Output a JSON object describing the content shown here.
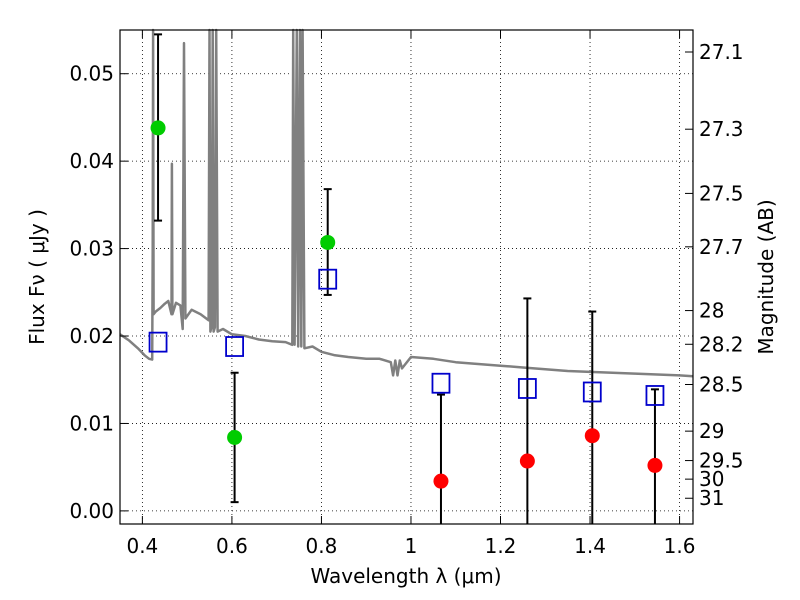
{
  "chart_data": {
    "type": "scatter",
    "x_axis": {
      "label": "Wavelength  λ (μm)",
      "range": [
        0.35,
        1.63
      ],
      "ticks": [
        0.4,
        0.6,
        0.8,
        1.0,
        1.2,
        1.4,
        1.6
      ],
      "tick_labels": [
        "0.4",
        "0.6",
        "0.8",
        "1",
        "1.2",
        "1.4",
        "1.6"
      ]
    },
    "y_axis": {
      "label": "Flux  Fν  ( μJy )",
      "range": [
        -0.0015,
        0.055
      ],
      "ticks": [
        0.0,
        0.01,
        0.02,
        0.03,
        0.04,
        0.05
      ],
      "tick_labels": [
        "0.00",
        "0.01",
        "0.02",
        "0.03",
        "0.04",
        "0.05"
      ]
    },
    "y2_axis": {
      "label": "Magnitude (AB)",
      "ticks": [
        27.1,
        27.3,
        27.5,
        27.7,
        28,
        28.2,
        28.5,
        29,
        29.5,
        30,
        31
      ],
      "tick_labels": [
        "27.1",
        "27.3",
        "27.5",
        "27.7",
        "28",
        "28.2",
        "28.5",
        "29",
        "29.5",
        "30",
        "31"
      ]
    },
    "grid": true,
    "colors": {
      "model": "#808080",
      "detection": "#00cc00",
      "upper_limit": "#ff0000",
      "model_photometry": "#0000cc",
      "error_bar": "#000000"
    },
    "green_points": [
      {
        "x": 0.435,
        "y": 0.0438,
        "err_low": 0.0332,
        "err_high": 0.0545
      },
      {
        "x": 0.606,
        "y": 0.0084,
        "err_low": 0.001,
        "err_high": 0.0158
      },
      {
        "x": 0.814,
        "y": 0.0307,
        "err_low": 0.0247,
        "err_high": 0.0368
      }
    ],
    "red_points": [
      {
        "x": 1.067,
        "y": 0.0034,
        "err_low": -0.0015,
        "err_high": 0.0133
      },
      {
        "x": 1.26,
        "y": 0.0057,
        "err_low": -0.0015,
        "err_high": 0.0243
      },
      {
        "x": 1.405,
        "y": 0.0086,
        "err_low": -0.0015,
        "err_high": 0.0228
      },
      {
        "x": 1.545,
        "y": 0.0052,
        "err_low": -0.0015,
        "err_high": 0.0139
      }
    ],
    "blue_squares": [
      {
        "x": 0.435,
        "y": 0.0193
      },
      {
        "x": 0.606,
        "y": 0.0188
      },
      {
        "x": 0.814,
        "y": 0.0265
      },
      {
        "x": 1.067,
        "y": 0.0146
      },
      {
        "x": 1.26,
        "y": 0.014
      },
      {
        "x": 1.405,
        "y": 0.0136
      },
      {
        "x": 1.545,
        "y": 0.0132
      }
    ],
    "model_spectrum": [
      [
        0.35,
        0.0202
      ],
      [
        0.37,
        0.0195
      ],
      [
        0.39,
        0.0186
      ],
      [
        0.405,
        0.0178
      ],
      [
        0.415,
        0.0174
      ],
      [
        0.422,
        0.0173
      ],
      [
        0.423,
        0.03
      ],
      [
        0.424,
        0.055
      ],
      [
        0.425,
        0.0225
      ],
      [
        0.43,
        0.0228
      ],
      [
        0.44,
        0.0232
      ],
      [
        0.45,
        0.0237
      ],
      [
        0.458,
        0.024
      ],
      [
        0.465,
        0.0225
      ],
      [
        0.466,
        0.0397
      ],
      [
        0.467,
        0.0225
      ],
      [
        0.475,
        0.0238
      ],
      [
        0.485,
        0.0235
      ],
      [
        0.49,
        0.0208
      ],
      [
        0.493,
        0.0535
      ],
      [
        0.496,
        0.022
      ],
      [
        0.51,
        0.023
      ],
      [
        0.53,
        0.0225
      ],
      [
        0.548,
        0.0218
      ],
      [
        0.55,
        0.055
      ],
      [
        0.552,
        0.0205
      ],
      [
        0.555,
        0.0212
      ],
      [
        0.557,
        0.055
      ],
      [
        0.559,
        0.0205
      ],
      [
        0.562,
        0.021
      ],
      [
        0.565,
        0.055
      ],
      [
        0.568,
        0.0205
      ],
      [
        0.58,
        0.0208
      ],
      [
        0.6,
        0.0202
      ],
      [
        0.63,
        0.02
      ],
      [
        0.66,
        0.0196
      ],
      [
        0.69,
        0.0194
      ],
      [
        0.72,
        0.0193
      ],
      [
        0.735,
        0.019
      ],
      [
        0.737,
        0.055
      ],
      [
        0.74,
        0.019
      ],
      [
        0.745,
        0.055
      ],
      [
        0.748,
        0.0188
      ],
      [
        0.752,
        0.055
      ],
      [
        0.755,
        0.0188
      ],
      [
        0.758,
        0.055
      ],
      [
        0.762,
        0.0186
      ],
      [
        0.78,
        0.0188
      ],
      [
        0.8,
        0.0182
      ],
      [
        0.83,
        0.0178
      ],
      [
        0.86,
        0.0176
      ],
      [
        0.9,
        0.0174
      ],
      [
        0.93,
        0.0174
      ],
      [
        0.955,
        0.017
      ],
      [
        0.96,
        0.0155
      ],
      [
        0.965,
        0.0172
      ],
      [
        0.97,
        0.0155
      ],
      [
        0.975,
        0.0172
      ],
      [
        0.98,
        0.0163
      ],
      [
        1.0,
        0.0176
      ],
      [
        1.05,
        0.0174
      ],
      [
        1.1,
        0.017
      ],
      [
        1.15,
        0.0168
      ],
      [
        1.2,
        0.0166
      ],
      [
        1.25,
        0.0164
      ],
      [
        1.3,
        0.0162
      ],
      [
        1.35,
        0.016
      ],
      [
        1.4,
        0.0159
      ],
      [
        1.45,
        0.0158
      ],
      [
        1.5,
        0.0157
      ],
      [
        1.55,
        0.0156
      ],
      [
        1.6,
        0.0155
      ],
      [
        1.63,
        0.0154
      ]
    ]
  }
}
